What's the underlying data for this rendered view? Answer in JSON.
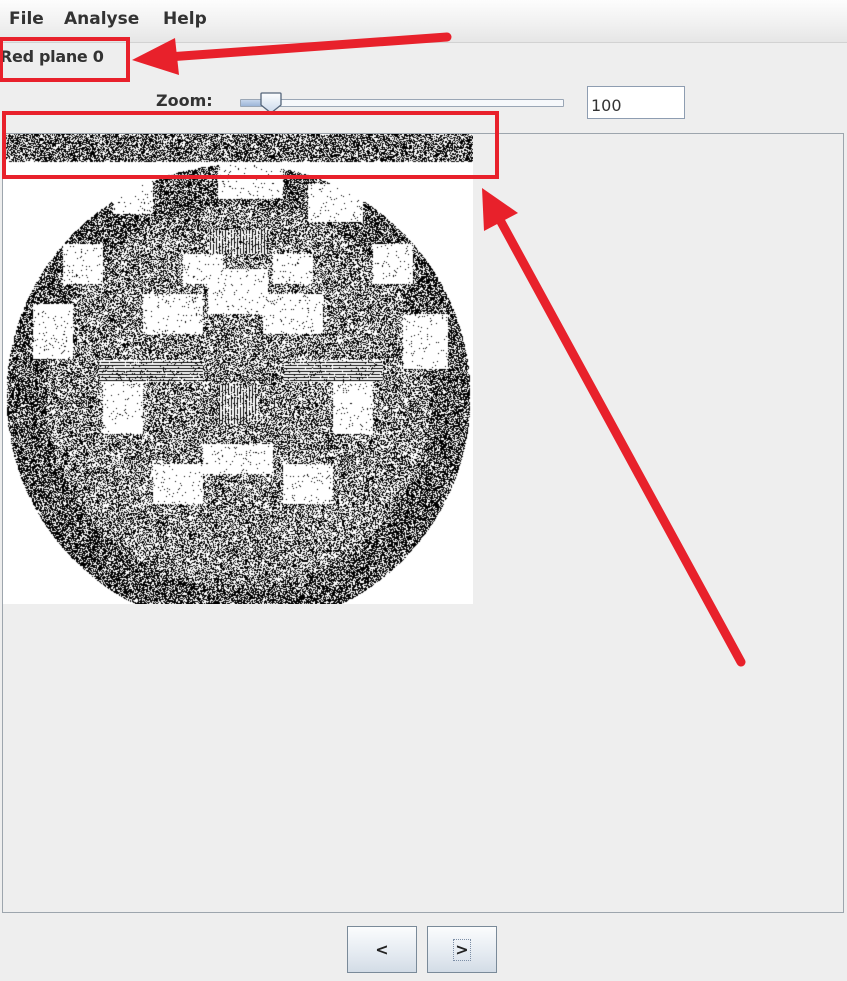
{
  "menu": {
    "items": [
      {
        "label": "File"
      },
      {
        "label": "Analyse"
      },
      {
        "label": "Help"
      }
    ]
  },
  "status": {
    "label": "Red plane 0"
  },
  "zoom": {
    "label": "Zoom:",
    "value": "100",
    "slider_fraction": 0.07
  },
  "navigation": {
    "prev_label": "<",
    "next_label": ">"
  },
  "icons": {
    "slider_thumb": "slider-thumb-icon"
  },
  "colors": {
    "annotation": "#e8212b",
    "background": "#eeeeee",
    "image_black": "#000000",
    "image_white": "#ffffff"
  }
}
